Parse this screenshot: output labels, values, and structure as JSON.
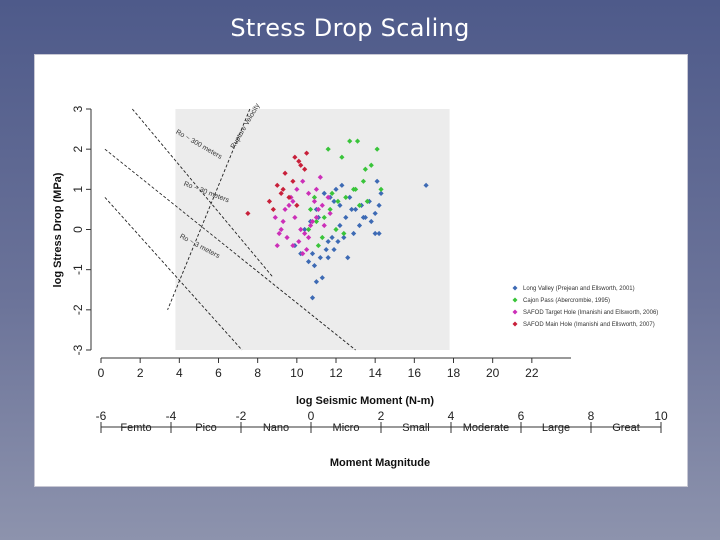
{
  "slide_title": "Stress Drop Scaling",
  "chart_data": {
    "type": "scatter",
    "title": "Stress Drop Scaling",
    "xlabel": "log Seismic Moment (N-m)",
    "ylabel": "log Stress Drop (MPa)",
    "xlim": [
      0,
      24
    ],
    "ylim": [
      -3,
      3
    ],
    "x_ticks": [
      "0",
      "2",
      "4",
      "6",
      "8",
      "10",
      "12",
      "14",
      "16",
      "18",
      "20",
      "22"
    ],
    "x_tick_values": [
      0,
      2,
      4,
      6,
      8,
      10,
      12,
      14,
      16,
      18,
      20,
      22
    ],
    "y_ticks": [
      "-3",
      "-2",
      "-1",
      "0",
      "1",
      "2",
      "3"
    ],
    "y_tick_values": [
      -3,
      -2,
      -1,
      0,
      1,
      2,
      3
    ],
    "shaded_region_x": [
      3.8,
      17.8
    ],
    "secondary_axis": {
      "label": "Moment Magnitude",
      "range": [
        -6,
        10
      ],
      "ticks": [
        "-6",
        "-4",
        "-2",
        "0",
        "2",
        "4",
        "6",
        "8",
        "10"
      ],
      "tick_values": [
        -6,
        -4,
        -2,
        0,
        2,
        4,
        6,
        8,
        10
      ],
      "classes": [
        {
          "label": "Femto",
          "center": -5
        },
        {
          "label": "Pico",
          "center": -3
        },
        {
          "label": "Nano",
          "center": -1
        },
        {
          "label": "Micro",
          "center": 1
        },
        {
          "label": "Small",
          "center": 3
        },
        {
          "label": "Moderate",
          "center": 5
        },
        {
          "label": "Large",
          "center": 7
        },
        {
          "label": "Great",
          "center": 9
        }
      ]
    },
    "reference_lines": [
      {
        "label": "Ro ~ 300 meters",
        "points": [
          [
            1.6,
            3.0
          ],
          [
            8.8,
            -1.2
          ]
        ],
        "label_at": [
          3.8,
          2.4
        ],
        "label_angle": 30
      },
      {
        "label": "Ro ~ 30 meters",
        "points": [
          [
            0.2,
            2.0
          ],
          [
            13.0,
            -3.0
          ]
        ],
        "label_at": [
          4.2,
          1.1
        ],
        "label_angle": 21
      },
      {
        "label": "Ro ~ 3 meters",
        "points": [
          [
            0.2,
            0.8
          ],
          [
            7.2,
            -3.0
          ]
        ],
        "label_at": [
          4.0,
          -0.2
        ],
        "label_angle": 28
      },
      {
        "label": "Rupture Velocity",
        "points": [
          [
            7.6,
            3.0
          ],
          [
            3.4,
            -2.0
          ]
        ],
        "label_at": [
          6.8,
          2.0
        ],
        "label_angle": -60
      }
    ],
    "series": [
      {
        "name": "Long Valley (Prejean and Ellsworth, 2001)",
        "color": "#3d6ab4",
        "x": [
          11.3,
          11.0,
          10.8,
          11.6,
          11.9,
          12.1,
          12.4,
          12.6,
          12.9,
          13.2,
          13.5,
          13.8,
          14.0,
          14.2,
          14.3,
          14.1,
          13.7,
          13.3,
          12.8,
          12.5,
          12.2,
          11.8,
          11.5,
          11.2,
          10.9,
          10.6,
          10.2,
          9.9,
          10.4,
          11.1,
          11.7,
          12.3,
          12.7,
          13.0,
          13.4,
          14.2,
          11.4,
          12.0,
          10.7,
          11.6,
          12.2,
          16.6,
          14.0,
          10.8,
          11.0,
          11.9
        ],
        "y": [
          -1.2,
          -1.3,
          -1.7,
          -0.7,
          -0.5,
          -0.3,
          -0.2,
          -0.7,
          -0.1,
          0.1,
          0.3,
          0.2,
          0.4,
          0.6,
          0.9,
          1.2,
          0.7,
          0.6,
          0.5,
          0.3,
          0.1,
          -0.2,
          -0.5,
          -0.7,
          -0.9,
          -0.8,
          -0.6,
          -0.4,
          0.0,
          0.3,
          0.8,
          1.1,
          0.8,
          0.5,
          0.3,
          -0.1,
          0.9,
          1.0,
          0.2,
          -0.3,
          0.6,
          1.1,
          -0.1,
          -0.6,
          0.5,
          0.7
        ]
      },
      {
        "name": "Cajon Pass (Abercrombie, 1995)",
        "color": "#39c43a",
        "x": [
          12.7,
          13.1,
          13.5,
          14.1,
          13.8,
          13.4,
          12.9,
          12.5,
          12.1,
          11.7,
          11.4,
          11.0,
          10.7,
          11.6,
          12.3,
          13.0,
          13.6,
          14.3,
          11.3,
          12.0,
          10.9,
          11.8,
          12.4,
          13.2,
          11.1,
          10.6
        ],
        "y": [
          2.2,
          2.2,
          1.5,
          2.0,
          1.6,
          1.2,
          1.0,
          0.8,
          0.7,
          0.5,
          0.3,
          0.2,
          0.5,
          2.0,
          1.8,
          1.0,
          0.7,
          1.0,
          -0.2,
          0.0,
          0.8,
          0.9,
          -0.1,
          0.6,
          -0.4,
          0.0
        ]
      },
      {
        "name": "SAFOD Target Hole (Imanishi and Ellsworth, 2006)",
        "color": "#cc2fb8",
        "x": [
          8.9,
          9.2,
          9.5,
          9.8,
          10.1,
          10.4,
          10.7,
          11.0,
          11.3,
          11.6,
          9.4,
          9.7,
          10.0,
          10.3,
          10.6,
          10.9,
          11.2,
          9.0,
          9.3,
          9.6,
          9.9,
          10.2,
          10.5,
          10.8,
          11.1,
          11.4,
          9.1,
          9.8,
          10.6,
          11.0,
          11.7,
          10.3
        ],
        "y": [
          0.3,
          0.0,
          -0.2,
          -0.4,
          -0.3,
          -0.1,
          0.1,
          0.3,
          0.6,
          0.8,
          0.5,
          0.8,
          1.0,
          1.2,
          0.9,
          0.7,
          1.3,
          -0.4,
          0.2,
          0.6,
          0.3,
          0.0,
          -0.5,
          0.2,
          0.5,
          0.1,
          -0.1,
          0.7,
          -0.2,
          1.0,
          0.4,
          -0.6
        ]
      },
      {
        "name": "SAFOD Main Hole (Imanishi and Ellsworth, 2007)",
        "color": "#c8203a",
        "x": [
          7.5,
          8.6,
          9.0,
          9.3,
          9.6,
          9.9,
          10.2,
          10.5,
          9.4,
          9.8,
          10.1,
          8.8,
          9.2,
          10.4,
          10.0
        ],
        "y": [
          0.4,
          0.7,
          1.1,
          1.0,
          0.8,
          1.8,
          1.6,
          1.9,
          1.4,
          1.2,
          1.7,
          0.5,
          0.9,
          1.5,
          0.6
        ]
      }
    ],
    "legend_position": "lower-right"
  }
}
